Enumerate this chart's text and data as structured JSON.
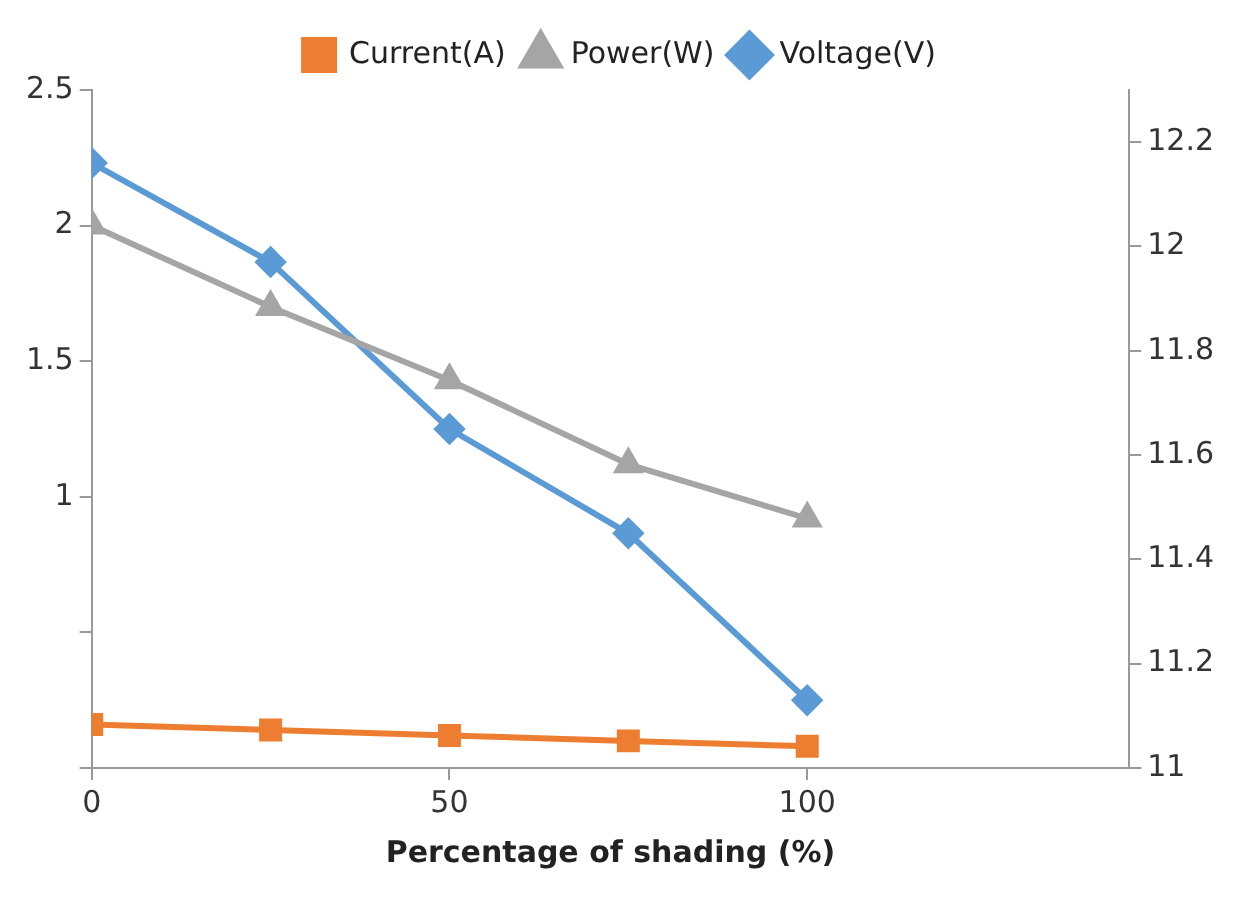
{
  "chart_data": {
    "type": "line",
    "xlabel": "Percentage of shading (%)",
    "x": [
      0,
      25,
      50,
      75,
      100
    ],
    "xlim": [
      0,
      145
    ],
    "xticks": [
      0,
      50,
      100
    ],
    "ylim": [
      0,
      2.5
    ],
    "yticks": [
      {
        "value": 0,
        "label": null
      },
      {
        "value": 0.5,
        "label": null
      },
      1,
      1.5,
      2,
      2.5
    ],
    "y2lim": [
      11,
      12.3
    ],
    "y2ticks": [
      11,
      11.2,
      11.4,
      11.6,
      11.8,
      12,
      12.2
    ],
    "series": [
      {
        "name": "Current(A)",
        "color": "#ed7d31",
        "marker": "square",
        "values": [
          0.16,
          0.14,
          0.12,
          0.1,
          0.08
        ]
      },
      {
        "name": "Power(W)",
        "color": "#a5a5a5",
        "marker": "triangle",
        "values": [
          2.0,
          1.7,
          1.43,
          1.12,
          0.92
        ]
      },
      {
        "name": "Voltage(V)",
        "color": "#5b9bd5",
        "marker": "diamond",
        "axis": "y2",
        "values": [
          12.16,
          11.97,
          11.65,
          11.45,
          11.13
        ]
      }
    ],
    "legend": "top",
    "grid": false
  }
}
